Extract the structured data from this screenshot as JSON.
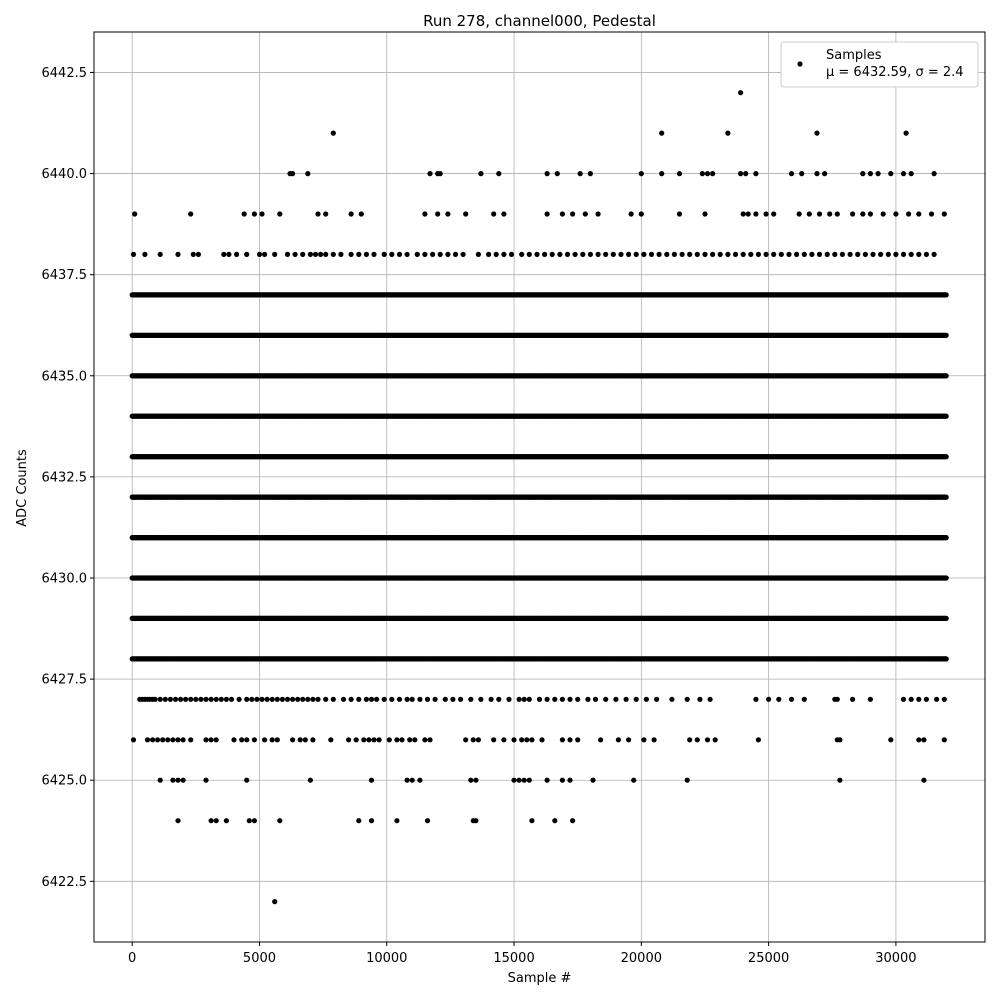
{
  "chart_data": {
    "type": "scatter",
    "title": "Run 278, channel000, Pedestal",
    "xlabel": "Sample #",
    "ylabel": "ADC Counts",
    "xlim": [
      -1500,
      33500
    ],
    "ylim": [
      6421.0,
      6443.5
    ],
    "xticks": [
      0,
      5000,
      10000,
      15000,
      20000,
      25000,
      30000
    ],
    "yticks": [
      6422.5,
      6425.0,
      6427.5,
      6430.0,
      6432.5,
      6435.0,
      6437.5,
      6440.0,
      6442.5
    ],
    "xtick_labels": [
      "0",
      "5000",
      "10000",
      "15000",
      "20000",
      "25000",
      "30000"
    ],
    "ytick_labels": [
      "6422.5",
      "6425.0",
      "6427.5",
      "6430.0",
      "6432.5",
      "6435.0",
      "6437.5",
      "6440.0",
      "6442.5"
    ],
    "grid": true,
    "legend_position": "top-right",
    "marker_color": "#000000",
    "series": [
      {
        "name": "Samples",
        "stats_label": "μ = 6432.59, σ = 2.4",
        "sample_count": 32000,
        "dense_levels": [
          6428,
          6429,
          6430,
          6431,
          6432,
          6433,
          6434,
          6435,
          6436,
          6437
        ],
        "sparse_levels": [
          {
            "y": 6427,
            "x": [
              300,
              400,
              500,
              600,
              700,
              800,
              900,
              1100,
              1300,
              1500,
              1700,
              1900,
              2100,
              2300,
              2500,
              2700,
              2900,
              3100,
              3300,
              3500,
              3700,
              3900,
              4200,
              4500,
              4700,
              4900,
              5100,
              5300,
              5500,
              5700,
              5900,
              6100,
              6300,
              6500,
              6700,
              6900,
              7100,
              7300,
              7600,
              7900,
              8300,
              8600,
              8900,
              9200,
              9400,
              9600,
              9900,
              10200,
              10500,
              10800,
              11000,
              11300,
              11600,
              11900,
              12300,
              12600,
              12900,
              13300,
              13700,
              14100,
              14400,
              14800,
              15200,
              15400,
              15600,
              16000,
              16300,
              16600,
              16900,
              17200,
              17500,
              17900,
              18200,
              18600,
              19000,
              19400,
              19800,
              20200,
              20600,
              21200,
              21800,
              22300,
              22700,
              24500,
              25000,
              25400,
              25900,
              26400,
              27600,
              27700,
              28300,
              29000,
              30300,
              30600,
              30900,
              31200,
              31600,
              31900
            ]
          },
          {
            "y": 6426,
            "x": [
              50,
              600,
              800,
              1000,
              1200,
              1400,
              1600,
              1800,
              2000,
              2300,
              2900,
              3100,
              3300,
              4000,
              4300,
              4500,
              4800,
              5200,
              5500,
              5700,
              6300,
              6600,
              6800,
              7100,
              7800,
              8500,
              8800,
              9100,
              9300,
              9500,
              9700,
              10100,
              10400,
              10600,
              10900,
              11100,
              11500,
              11700,
              13100,
              13400,
              13600,
              14200,
              14600,
              15000,
              15300,
              15500,
              15700,
              16100,
              16900,
              17200,
              17500,
              18400,
              19100,
              19500,
              20100,
              20500,
              21900,
              22200,
              22600,
              22900,
              24600,
              27700,
              27800,
              29800,
              30900,
              31100,
              31900
            ]
          },
          {
            "y": 6425,
            "x": [
              1100,
              1600,
              1800,
              2000,
              2900,
              4500,
              7000,
              9400,
              10800,
              11000,
              11300,
              13300,
              13500,
              15000,
              15200,
              15400,
              15600,
              16300,
              16900,
              17200,
              18100,
              19700,
              21800,
              27800,
              31100
            ]
          },
          {
            "y": 6424,
            "x": [
              1800,
              3100,
              3300,
              3700,
              4600,
              4800,
              5800,
              8900,
              9400,
              10400,
              11600,
              13400,
              13500,
              15700,
              16600,
              17300
            ]
          },
          {
            "y": 6422,
            "x": [
              5600
            ]
          },
          {
            "y": 6438,
            "x": [
              50,
              500,
              1100,
              1800,
              2400,
              2600,
              3600,
              3800,
              4100,
              4500,
              5000,
              5200,
              5600,
              6100,
              6400,
              6700,
              7000,
              7200,
              7400,
              7600,
              7900,
              8200,
              8600,
              8900,
              9200,
              9500,
              9900,
              10200,
              10500,
              10800,
              11200,
              11500,
              11800,
              12100,
              12400,
              12700,
              13000,
              13600,
              14000,
              14300,
              14600,
              14900,
              15300,
              15600,
              15900,
              16200,
              16500,
              16800,
              17100,
              17400,
              17700,
              18000,
              18300,
              18600,
              18900,
              19200,
              19500,
              19800,
              20100,
              20400,
              20700,
              21000,
              21300,
              21600,
              21900,
              22200,
              22500,
              22800,
              23100,
              23400,
              23700,
              24000,
              24300,
              24600,
              24900,
              25200,
              25500,
              25800,
              26100,
              26400,
              26700,
              27000,
              27300,
              27600,
              27900,
              28200,
              28500,
              28800,
              29100,
              29400,
              29700,
              30000,
              30300,
              30600,
              30900,
              31200,
              31500
            ]
          },
          {
            "y": 6439,
            "x": [
              100,
              2300,
              4400,
              4800,
              5100,
              5800,
              7300,
              7600,
              8600,
              9000,
              11500,
              12000,
              12400,
              13100,
              14200,
              14600,
              16300,
              16900,
              17300,
              17800,
              18300,
              19600,
              20000,
              21500,
              22500,
              24000,
              24200,
              24500,
              24900,
              25200,
              26200,
              26600,
              27000,
              27400,
              27700,
              28300,
              28700,
              29000,
              29500,
              30000,
              30500,
              30900,
              31400,
              31900
            ]
          },
          {
            "y": 6440,
            "x": [
              6200,
              6300,
              6900,
              11700,
              12000,
              12100,
              13700,
              14400,
              16300,
              16700,
              17600,
              18000,
              20000,
              20800,
              21500,
              22400,
              22600,
              22800,
              23900,
              24100,
              24500,
              25900,
              26300,
              26900,
              27200,
              28700,
              29000,
              29300,
              29800,
              30300,
              30600,
              31500
            ]
          },
          {
            "y": 6441,
            "x": [
              7900,
              20800,
              23400,
              26900,
              30400
            ]
          },
          {
            "y": 6442,
            "x": [
              23900
            ]
          }
        ]
      }
    ]
  }
}
